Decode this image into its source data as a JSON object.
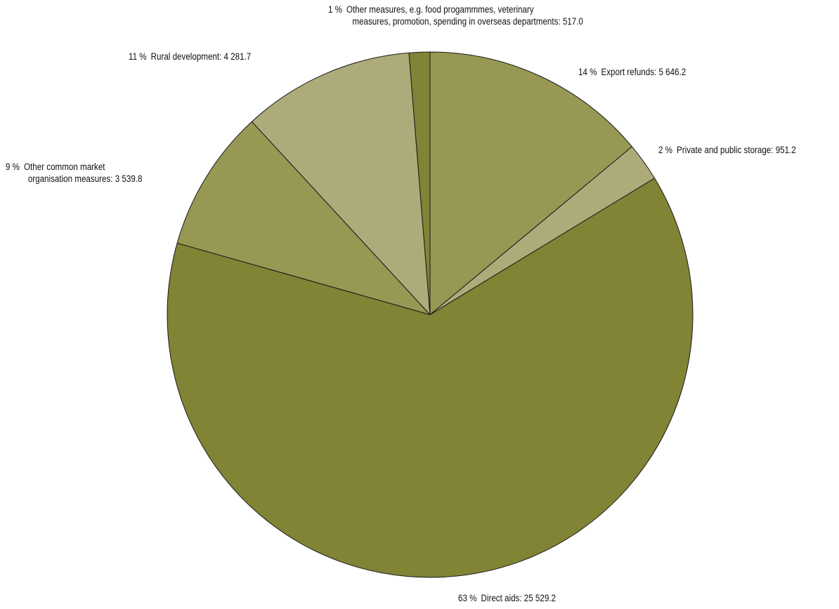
{
  "chart_data": {
    "type": "pie",
    "start_angle": "12 o'clock",
    "direction": "clockwise",
    "slices": [
      {
        "percent": "14 %",
        "label": "Export refunds: 5 646.2",
        "value": 5646.2,
        "color": "#979853"
      },
      {
        "percent": "2 %",
        "label": "Private and public storage: 951.2",
        "value": 951.2,
        "color": "#adab79"
      },
      {
        "percent": "63 %",
        "label": "Direct aids: 25 529.2",
        "value": 25529.2,
        "color": "#818335"
      },
      {
        "percent": "9 %",
        "label_lines": [
          "Other common market",
          "organisation measures: 3 539.8"
        ],
        "value": 3539.8,
        "color": "#979853"
      },
      {
        "percent": "11 %",
        "label": "Rural development: 4 281.7",
        "value": 4281.7,
        "color": "#adab79"
      },
      {
        "percent": "1 %",
        "label_lines": [
          "Other measures, e.g. food progammmes, veterinary",
          "measures, promotion, spending in overseas departments: 517.0"
        ],
        "value": 517.0,
        "color": "#818335"
      }
    ]
  }
}
